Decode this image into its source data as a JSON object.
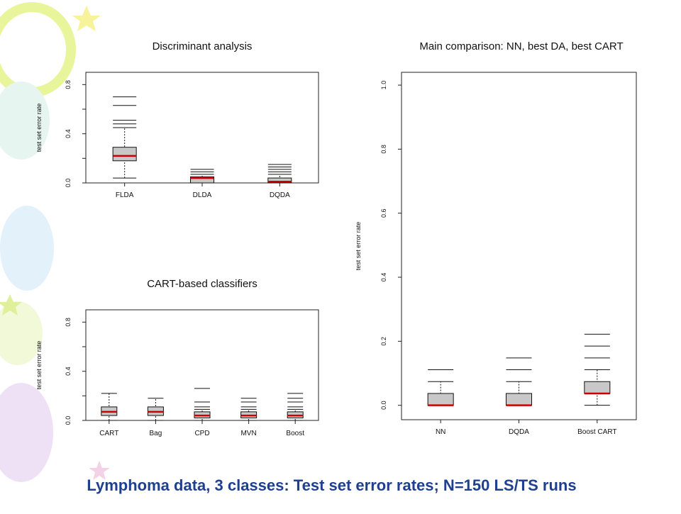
{
  "slide": {
    "caption": "Lymphoma data, 3 classes: Test set error rates; N=150 LS/TS runs"
  },
  "colors": {
    "box_fill": "#c8c8c8",
    "median": "#cc0000",
    "axis": "#222222",
    "caption": "#1f3f8f"
  },
  "chart_data": [
    {
      "type": "boxplot",
      "title": "Discriminant analysis",
      "ylabel": "test set error rate",
      "ylim": [
        0.0,
        0.9
      ],
      "yticks": [
        "0.0",
        "0.4",
        "0.8"
      ],
      "categories": [
        "FLDA",
        "DLDA",
        "DQDA"
      ],
      "boxes": [
        {
          "name": "FLDA",
          "whisker_low": 0.04,
          "q1": 0.18,
          "median": 0.22,
          "q3": 0.29,
          "whisker_high": 0.45,
          "outliers": [
            0.48,
            0.51,
            0.63,
            0.7
          ]
        },
        {
          "name": "DLDA",
          "whisker_low": 0.0,
          "q1": 0.0,
          "median": 0.04,
          "q3": 0.05,
          "whisker_high": 0.07,
          "outliers": [
            0.09,
            0.11
          ]
        },
        {
          "name": "DQDA",
          "whisker_low": 0.0,
          "q1": 0.0,
          "median": 0.01,
          "q3": 0.04,
          "whisker_high": 0.07,
          "outliers": [
            0.09,
            0.11,
            0.13,
            0.15
          ]
        }
      ]
    },
    {
      "type": "boxplot",
      "title": "CART-based classifiers",
      "ylabel": "test set error rate",
      "ylim": [
        0.0,
        0.9
      ],
      "yticks": [
        "0.0",
        "0.4",
        "0.8"
      ],
      "categories": [
        "CART",
        "Bag",
        "CPD",
        "MVN",
        "Boost"
      ],
      "boxes": [
        {
          "name": "CART",
          "whisker_low": 0.0,
          "q1": 0.04,
          "median": 0.07,
          "q3": 0.11,
          "whisker_high": 0.22,
          "outliers": []
        },
        {
          "name": "Bag",
          "whisker_low": 0.0,
          "q1": 0.04,
          "median": 0.07,
          "q3": 0.11,
          "whisker_high": 0.18,
          "outliers": []
        },
        {
          "name": "CPD",
          "whisker_low": 0.0,
          "q1": 0.02,
          "median": 0.04,
          "q3": 0.07,
          "whisker_high": 0.09,
          "outliers": [
            0.11,
            0.15,
            0.26
          ]
        },
        {
          "name": "MVN",
          "whisker_low": 0.0,
          "q1": 0.02,
          "median": 0.04,
          "q3": 0.07,
          "whisker_high": 0.09,
          "outliers": [
            0.11,
            0.15,
            0.18
          ]
        },
        {
          "name": "Boost",
          "whisker_low": 0.0,
          "q1": 0.02,
          "median": 0.04,
          "q3": 0.07,
          "whisker_high": 0.09,
          "outliers": [
            0.11,
            0.15,
            0.18,
            0.22
          ]
        }
      ]
    },
    {
      "type": "boxplot",
      "title": "Main comparison: NN, best DA, best CART",
      "ylabel": "test set error rate",
      "ylim": [
        -0.045,
        1.04
      ],
      "yticks": [
        "0.0",
        "0.2",
        "0.4",
        "0.6",
        "0.8",
        "1.0"
      ],
      "categories": [
        "NN",
        "DQDA",
        "Boost CART"
      ],
      "boxes": [
        {
          "name": "NN",
          "whisker_low": 0.0,
          "q1": 0.0,
          "median": 0.0,
          "q3": 0.037,
          "whisker_high": 0.074,
          "outliers": [
            0.111
          ]
        },
        {
          "name": "DQDA",
          "whisker_low": 0.0,
          "q1": 0.0,
          "median": 0.0,
          "q3": 0.037,
          "whisker_high": 0.074,
          "outliers": [
            0.111,
            0.148
          ]
        },
        {
          "name": "Boost CART",
          "whisker_low": 0.0,
          "q1": 0.037,
          "median": 0.037,
          "q3": 0.074,
          "whisker_high": 0.111,
          "outliers": [
            0.148,
            0.185,
            0.222
          ]
        }
      ]
    }
  ]
}
